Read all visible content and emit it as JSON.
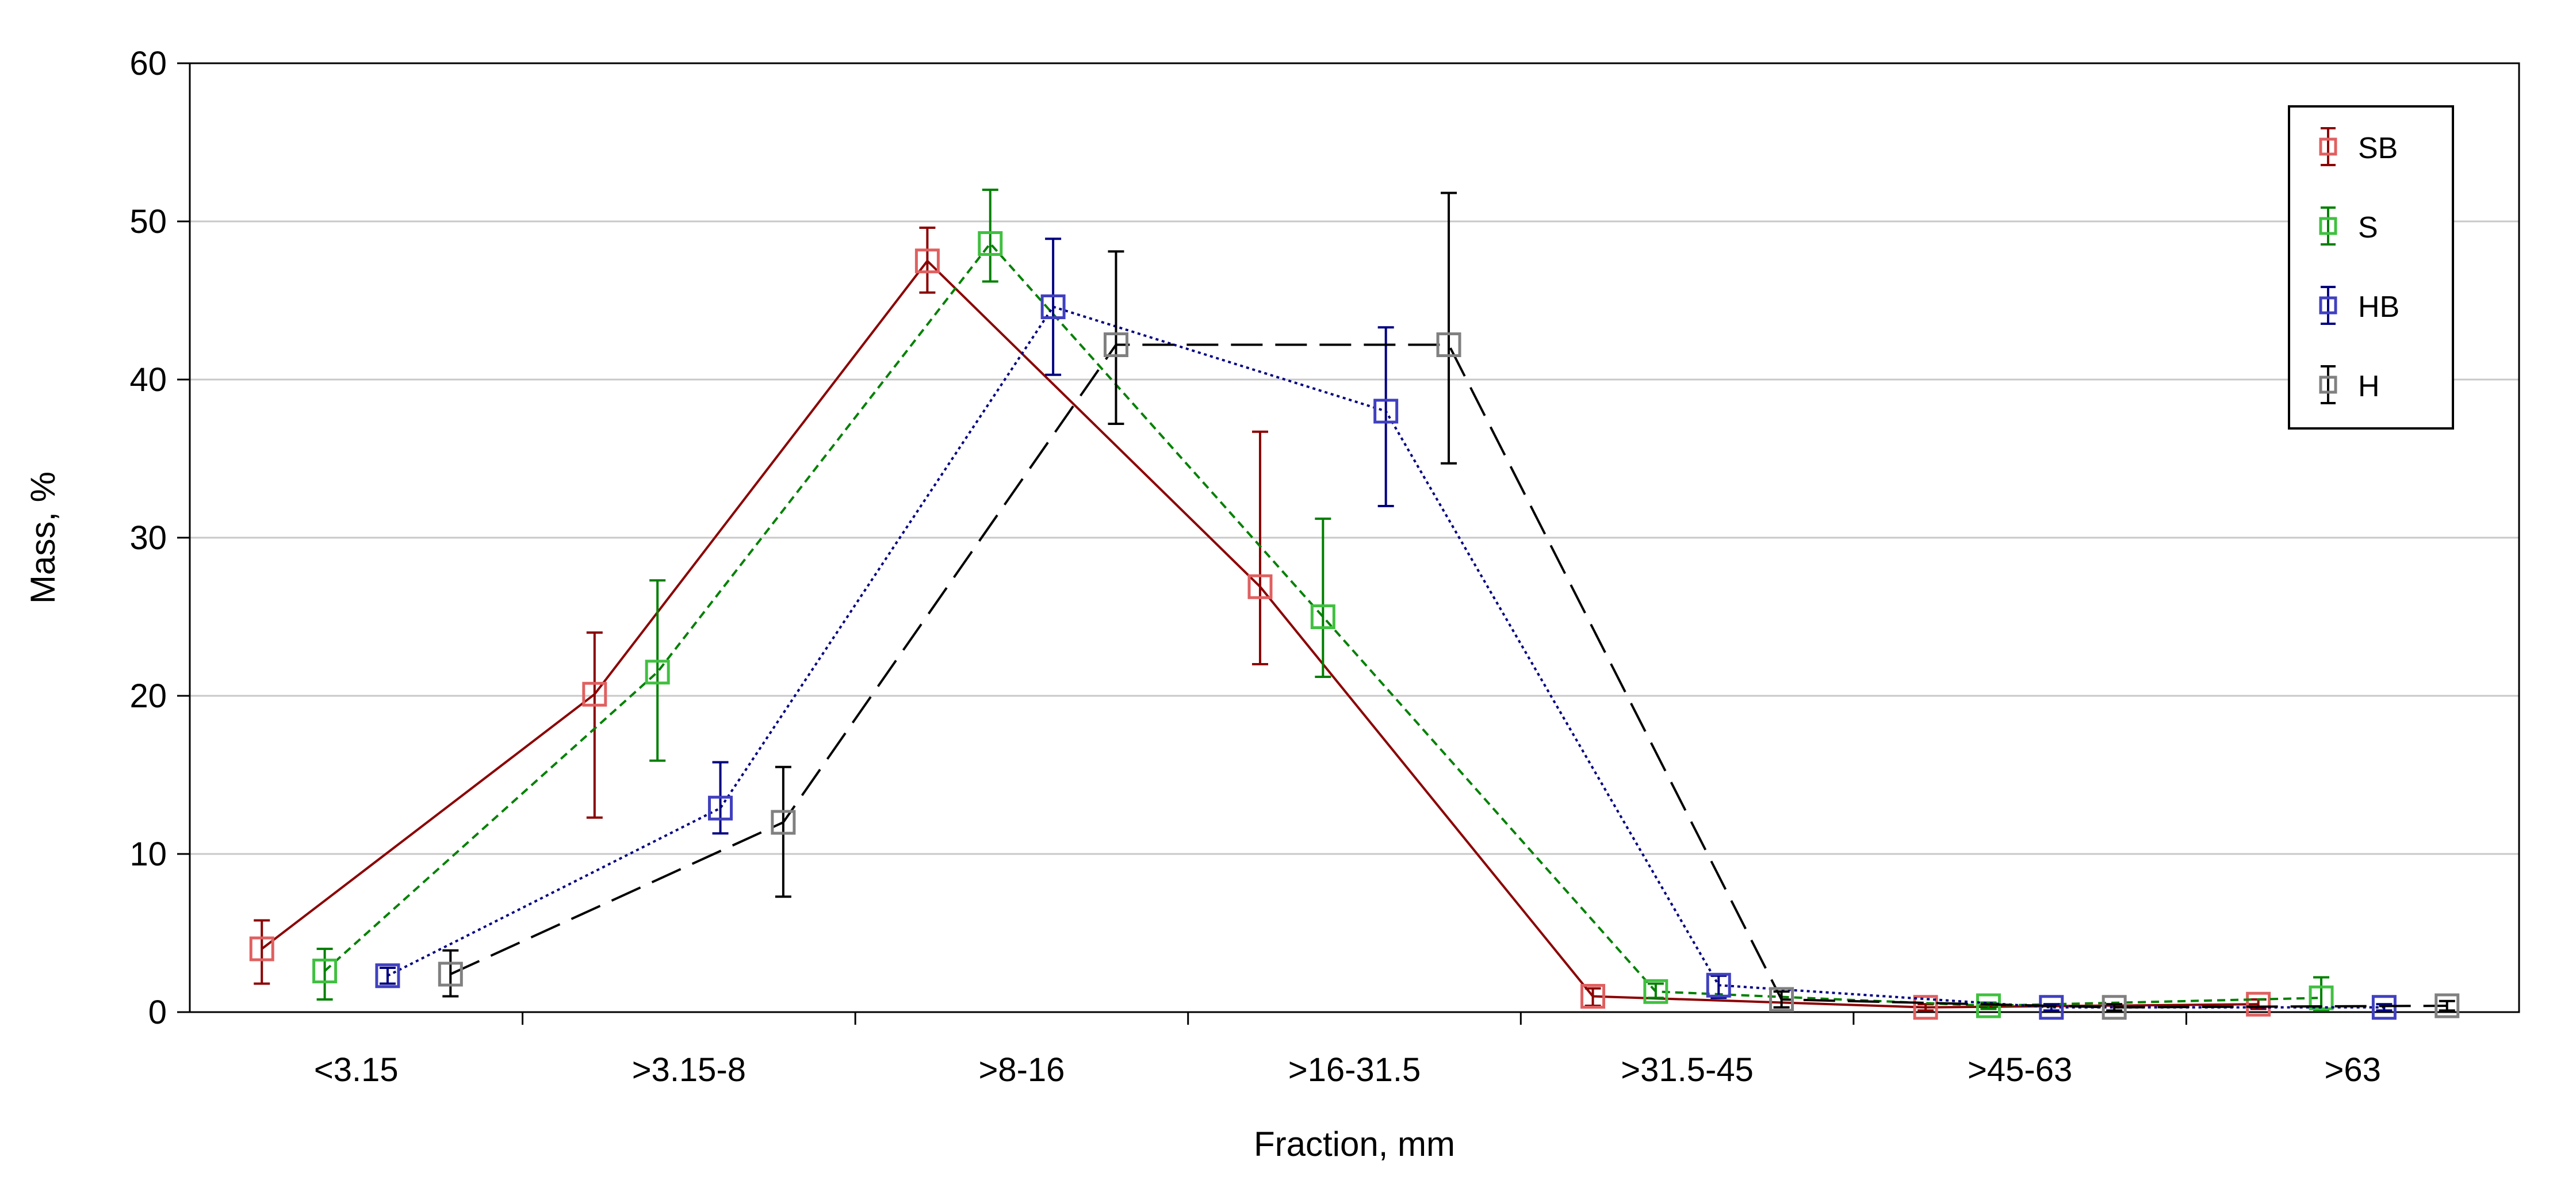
{
  "chart_data": {
    "type": "line",
    "title": "",
    "xlabel": "Fraction, mm",
    "ylabel": "Mass, %",
    "ylim": [
      0,
      60
    ],
    "yticks": [
      0,
      10,
      20,
      30,
      40,
      50,
      60
    ],
    "grid": true,
    "legend_position": "top-right",
    "categories": [
      "<3.15",
      ">3.15-8",
      ">8-16",
      ">16-31.5",
      ">31.5-45",
      ">45-63",
      ">63"
    ],
    "series": [
      {
        "name": "SB",
        "color": "#8b0000",
        "marker_color": "#e06060",
        "dash": "solid",
        "values": [
          4.0,
          20.1,
          47.5,
          26.9,
          1.0,
          0.3,
          0.5
        ],
        "err_low": [
          1.8,
          12.3,
          45.5,
          22.0,
          0.4,
          0.1,
          0.2
        ],
        "err_high": [
          5.8,
          24.0,
          49.6,
          36.7,
          1.5,
          0.5,
          0.8
        ]
      },
      {
        "name": "S",
        "color": "#008000",
        "marker_color": "#40c040",
        "dash": "dotted",
        "values": [
          2.6,
          21.5,
          48.6,
          25.0,
          1.3,
          0.4,
          0.9
        ],
        "err_low": [
          0.8,
          15.9,
          46.2,
          21.2,
          0.9,
          0.2,
          0.1
        ],
        "err_high": [
          4.0,
          27.3,
          52.0,
          31.2,
          1.8,
          0.6,
          2.2
        ]
      },
      {
        "name": "HB",
        "color": "#000080",
        "marker_color": "#4040c0",
        "dash": "fine-dotted",
        "values": [
          2.3,
          12.9,
          44.6,
          38.0,
          1.7,
          0.3,
          0.3
        ],
        "err_low": [
          1.8,
          11.3,
          40.3,
          32.0,
          0.9,
          0.1,
          0.1
        ],
        "err_high": [
          2.8,
          15.8,
          48.9,
          43.3,
          2.3,
          0.5,
          0.5
        ]
      },
      {
        "name": "H",
        "color": "#000000",
        "marker_color": "#808080",
        "dash": "long-dash",
        "values": [
          2.4,
          12.0,
          42.2,
          42.2,
          0.8,
          0.3,
          0.4
        ],
        "err_low": [
          1.0,
          7.3,
          37.2,
          34.7,
          0.3,
          0.1,
          0.1
        ],
        "err_high": [
          3.9,
          15.5,
          48.1,
          51.8,
          1.3,
          0.5,
          0.7
        ]
      }
    ]
  }
}
